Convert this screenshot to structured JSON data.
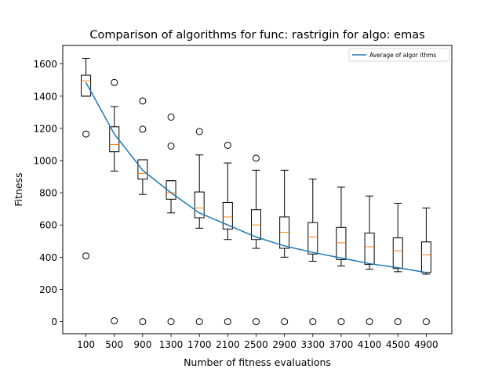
{
  "chart_data": {
    "type": "box",
    "title": "Comparison of algorithms for func: rastrigin for algo: emas",
    "xlabel": "Number of fitness evaluations",
    "ylabel": "Fitness",
    "ylim": [
      -75,
      1715
    ],
    "yticks": [
      0,
      200,
      400,
      600,
      800,
      1000,
      1200,
      1400,
      1600
    ],
    "categories": [
      "100",
      "500",
      "900",
      "1300",
      "1700",
      "2100",
      "2500",
      "2900",
      "3300",
      "3700",
      "4100",
      "4500",
      "4900"
    ],
    "boxes": [
      {
        "whislo": 1400,
        "q1": 1400,
        "med": 1495,
        "q3": 1530,
        "whishi": 1635,
        "fliers": [
          1165,
          408
        ]
      },
      {
        "whislo": 935,
        "q1": 1055,
        "med": 1100,
        "q3": 1210,
        "whishi": 1335,
        "fliers": [
          1485,
          5
        ]
      },
      {
        "whislo": 790,
        "q1": 885,
        "med": 920,
        "q3": 1005,
        "whishi": 1005,
        "fliers": [
          1370,
          1195,
          0
        ]
      },
      {
        "whislo": 675,
        "q1": 760,
        "med": 800,
        "q3": 875,
        "whishi": 875,
        "fliers": [
          1270,
          1090,
          0
        ]
      },
      {
        "whislo": 580,
        "q1": 645,
        "med": 705,
        "q3": 805,
        "whishi": 1035,
        "fliers": [
          1180,
          0
        ]
      },
      {
        "whislo": 510,
        "q1": 575,
        "med": 650,
        "q3": 740,
        "whishi": 985,
        "fliers": [
          1095,
          0
        ]
      },
      {
        "whislo": 455,
        "q1": 510,
        "med": 600,
        "q3": 695,
        "whishi": 940,
        "fliers": [
          1015,
          0
        ]
      },
      {
        "whislo": 400,
        "q1": 455,
        "med": 555,
        "q3": 650,
        "whishi": 940,
        "fliers": [
          0
        ]
      },
      {
        "whislo": 375,
        "q1": 420,
        "med": 525,
        "q3": 615,
        "whishi": 885,
        "fliers": [
          0
        ]
      },
      {
        "whislo": 345,
        "q1": 385,
        "med": 490,
        "q3": 585,
        "whishi": 835,
        "fliers": [
          0
        ]
      },
      {
        "whislo": 325,
        "q1": 355,
        "med": 465,
        "q3": 550,
        "whishi": 780,
        "fliers": [
          0
        ]
      },
      {
        "whislo": 310,
        "q1": 330,
        "med": 440,
        "q3": 520,
        "whishi": 735,
        "fliers": [
          0
        ]
      },
      {
        "whislo": 295,
        "q1": 305,
        "med": 415,
        "q3": 495,
        "whishi": 705,
        "fliers": [
          0
        ]
      }
    ],
    "series": [
      {
        "name": "Average of algor ithms",
        "values": [
          1485,
          1165,
          940,
          800,
          675,
          600,
          525,
          470,
          430,
          395,
          360,
          335,
          305
        ]
      }
    ],
    "colors": {
      "box": "#000000",
      "median": "#ff7f0e",
      "average_line": "#1f77b4"
    },
    "legend_position": "top-right",
    "grid": false
  }
}
